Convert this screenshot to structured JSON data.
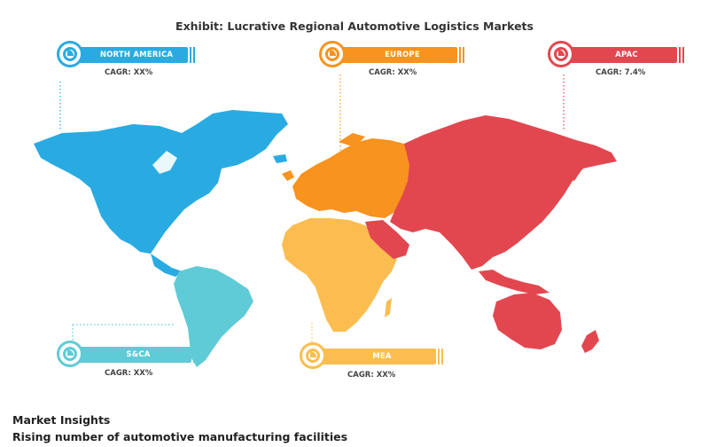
{
  "title": "Exhibit: Lucrative Regional Automotive Logistics Markets",
  "regions": {
    "north_america": {
      "label": "NORTH AMERICA",
      "cagr": "CAGR: XX%",
      "color": "#29abe2"
    },
    "europe": {
      "label": "EUROPE",
      "cagr": "CAGR: XX%",
      "color": "#f7931e"
    },
    "apac": {
      "label": "APAC",
      "cagr": "CAGR: 7.4%",
      "color": "#e2474f"
    },
    "sca": {
      "label": "S&CA",
      "cagr": "CAGR: XX%",
      "color": "#5fcbd6"
    },
    "mea": {
      "label": "MEA",
      "cagr": "CAGR: XX%",
      "color": "#fbbd4f"
    }
  },
  "insights": {
    "heading": "Market Insights",
    "text": "Rising number of automotive manufacturing facilities"
  }
}
